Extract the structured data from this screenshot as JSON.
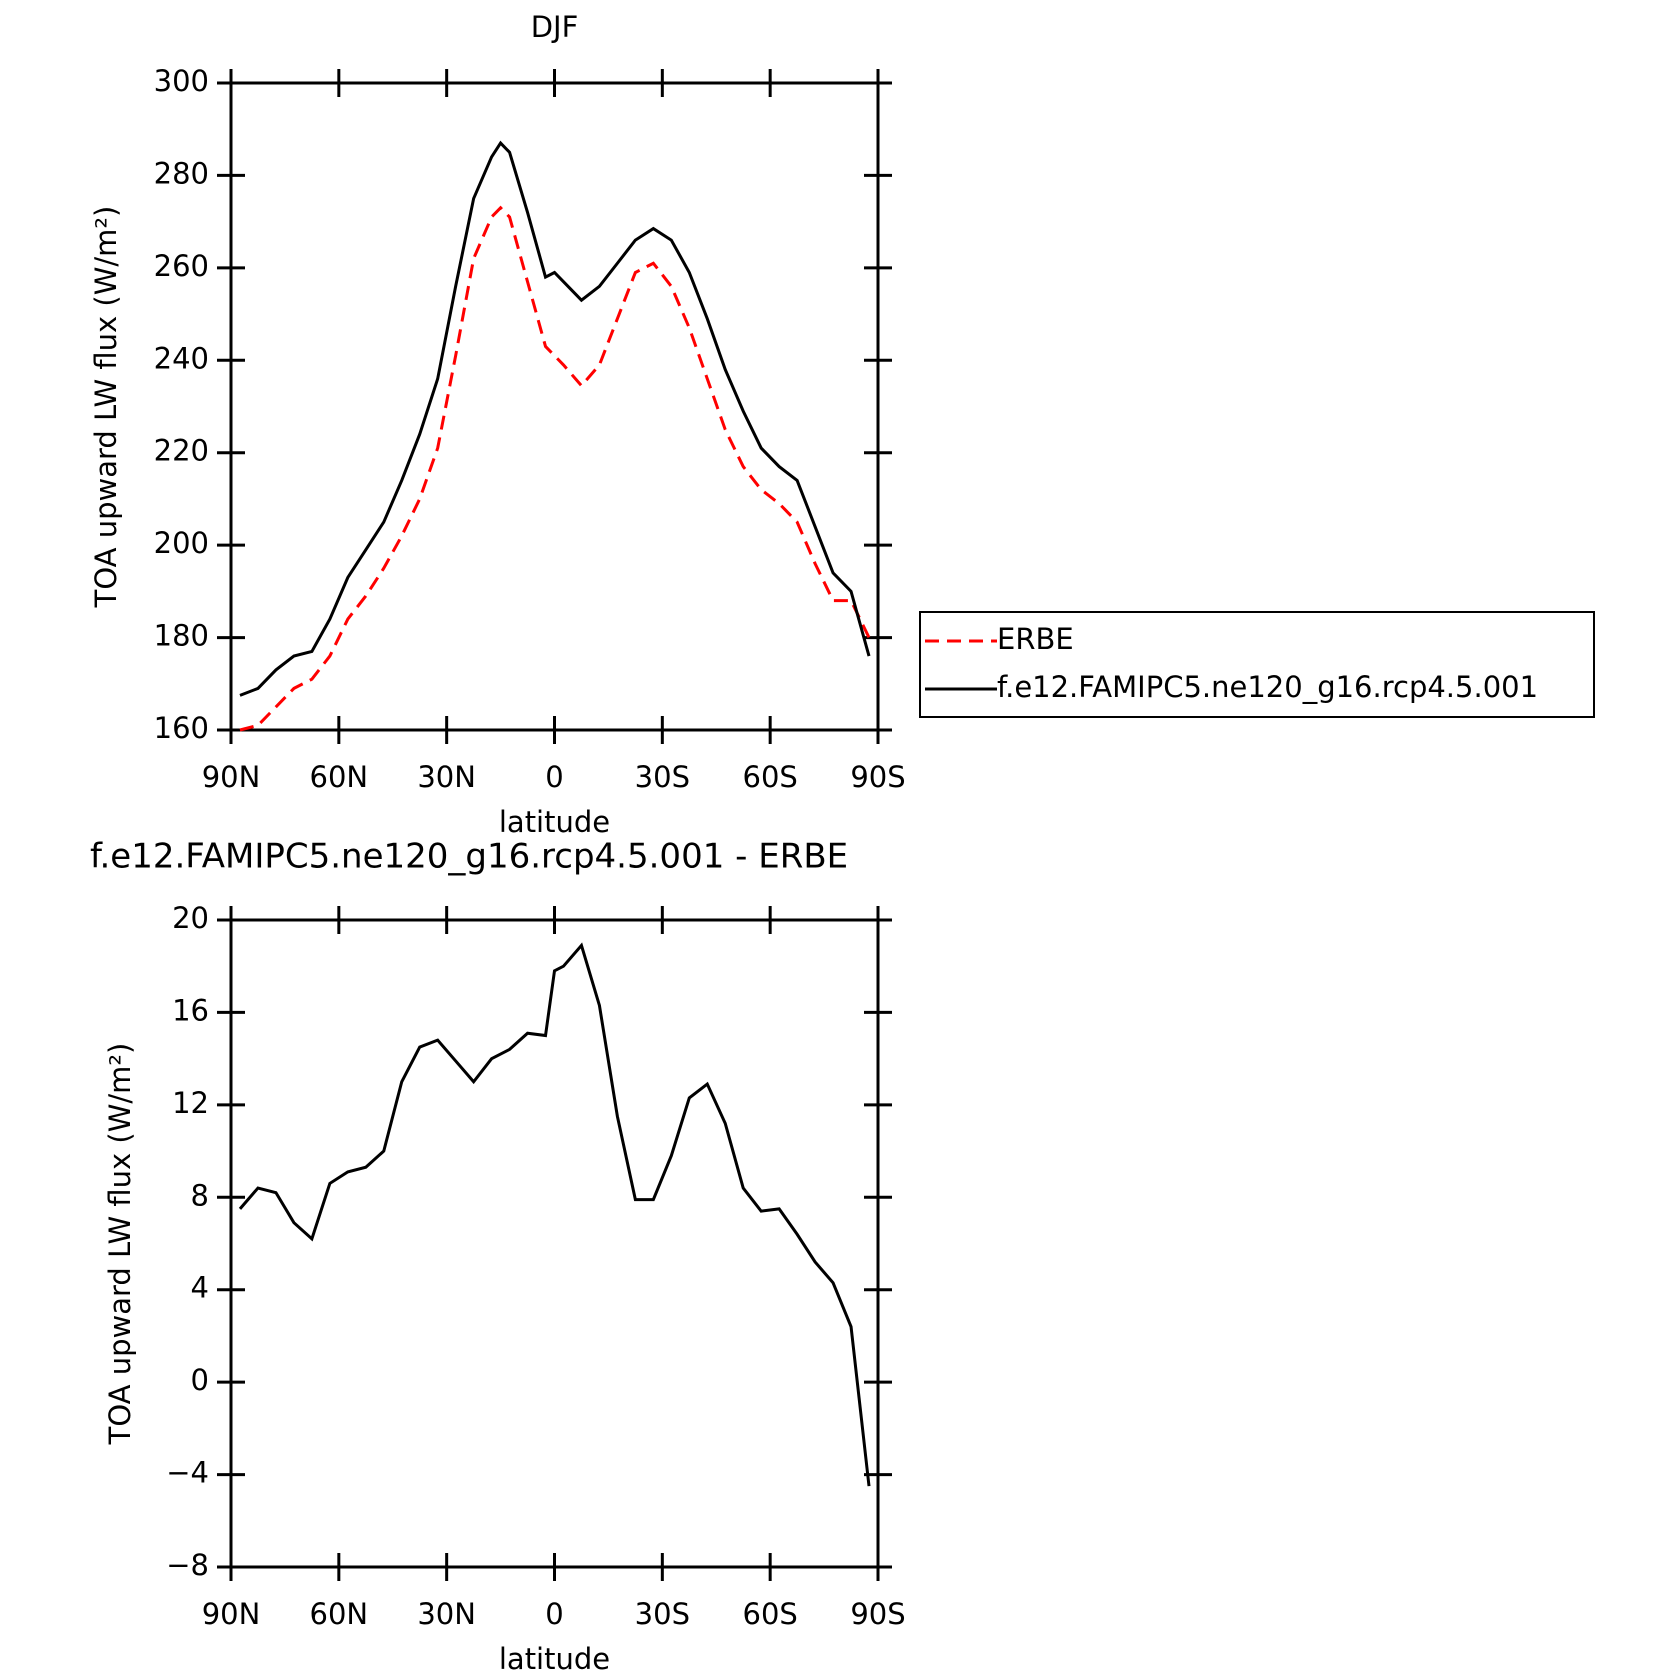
{
  "chart_data": [
    {
      "type": "line",
      "title": "DJF",
      "xlabel": "latitude",
      "ylabel": "TOA upward LW flux (W/m²)",
      "x": [
        87.5,
        82.5,
        77.5,
        72.5,
        67.5,
        62.5,
        57.5,
        52.5,
        47.5,
        42.5,
        37.5,
        32.5,
        27.5,
        22.5,
        17.5,
        15,
        12.5,
        7.5,
        2.5,
        0,
        -2.5,
        -7.5,
        -12.5,
        -17.5,
        -22.5,
        -27.5,
        -32.5,
        -37.5,
        -42.5,
        -47.5,
        -52.5,
        -57.5,
        -62.5,
        -67.5,
        -72.5,
        -77.5,
        -82.5,
        -87.5
      ],
      "series": [
        {
          "name": "ERBE",
          "color": "#ff0000",
          "dashed": true,
          "values": [
            160,
            161,
            165,
            169,
            171,
            176,
            184,
            189,
            195,
            202,
            210,
            221,
            241,
            262,
            271,
            273,
            271,
            257,
            243,
            241,
            239,
            234.5,
            239,
            249,
            259,
            261,
            256,
            247,
            236,
            225,
            217,
            212,
            209,
            205,
            196,
            188,
            188,
            180
          ]
        },
        {
          "name": "f.e12.FAMIPC5.ne120_g16.rcp4.5.001",
          "color": "#000000",
          "dashed": false,
          "values": [
            167.5,
            169,
            173,
            176,
            177,
            184,
            193,
            199,
            205,
            214,
            224,
            236,
            256,
            275,
            284,
            287,
            285,
            272,
            258,
            259,
            257,
            253,
            256,
            261,
            266,
            268.5,
            266,
            259,
            249,
            238,
            229,
            221,
            217,
            214,
            204,
            194,
            190,
            176
          ]
        }
      ],
      "xlim": [
        90,
        -90
      ],
      "xticks": [
        {
          "value": 90,
          "label": "90N"
        },
        {
          "value": 60,
          "label": "60N"
        },
        {
          "value": 30,
          "label": "30N"
        },
        0,
        {
          "value": -30,
          "label": "30S"
        },
        {
          "value": -60,
          "label": "60S"
        },
        {
          "value": -90,
          "label": "90S"
        }
      ],
      "ylim": [
        160,
        300
      ],
      "yticks": [
        160,
        180,
        200,
        220,
        240,
        260,
        280,
        300
      ],
      "legend": "outside-right"
    },
    {
      "type": "line",
      "title": "f.e12.FAMIPC5.ne120_g16.rcp4.5.001 - ERBE",
      "xlabel": "latitude",
      "ylabel": "TOA upward LW flux (W/m²)",
      "x": [
        87.5,
        82.5,
        77.5,
        72.5,
        67.5,
        62.5,
        57.5,
        52.5,
        47.5,
        42.5,
        37.5,
        32.5,
        27.5,
        22.5,
        17.5,
        12.5,
        7.5,
        2.5,
        0,
        -2.5,
        -7.5,
        -12.5,
        -17.5,
        -22.5,
        -27.5,
        -32.5,
        -37.5,
        -42.5,
        -47.5,
        -52.5,
        -57.5,
        -62.5,
        -67.5,
        -72.5,
        -77.5,
        -82.5,
        -87.5
      ],
      "series": [
        {
          "color": "#000000",
          "values": [
            7.5,
            8.4,
            8.2,
            6.9,
            6.2,
            8.6,
            9.1,
            9.3,
            10,
            13,
            14.5,
            14.8,
            13.9,
            13,
            14,
            14.4,
            15.1,
            15,
            17.8,
            18,
            18.9,
            16.3,
            11.5,
            7.9,
            7.9,
            9.8,
            12.3,
            12.9,
            11.2,
            8.4,
            7.4,
            7.5,
            6.4,
            5.2,
            4.3,
            2.4,
            -4.5
          ]
        }
      ],
      "xlim": [
        90,
        -90
      ],
      "xticks": [
        {
          "value": 90,
          "label": "90N"
        },
        {
          "value": 60,
          "label": "60N"
        },
        {
          "value": 30,
          "label": "30N"
        },
        0,
        {
          "value": -30,
          "label": "30S"
        },
        {
          "value": -60,
          "label": "60S"
        },
        {
          "value": -90,
          "label": "90S"
        }
      ],
      "ylim": [
        -8,
        20
      ],
      "yticks": [
        {
          "value": -8,
          "label": "−8"
        },
        {
          "value": -4,
          "label": "−4"
        },
        0,
        4,
        8,
        12,
        16,
        20
      ]
    }
  ]
}
